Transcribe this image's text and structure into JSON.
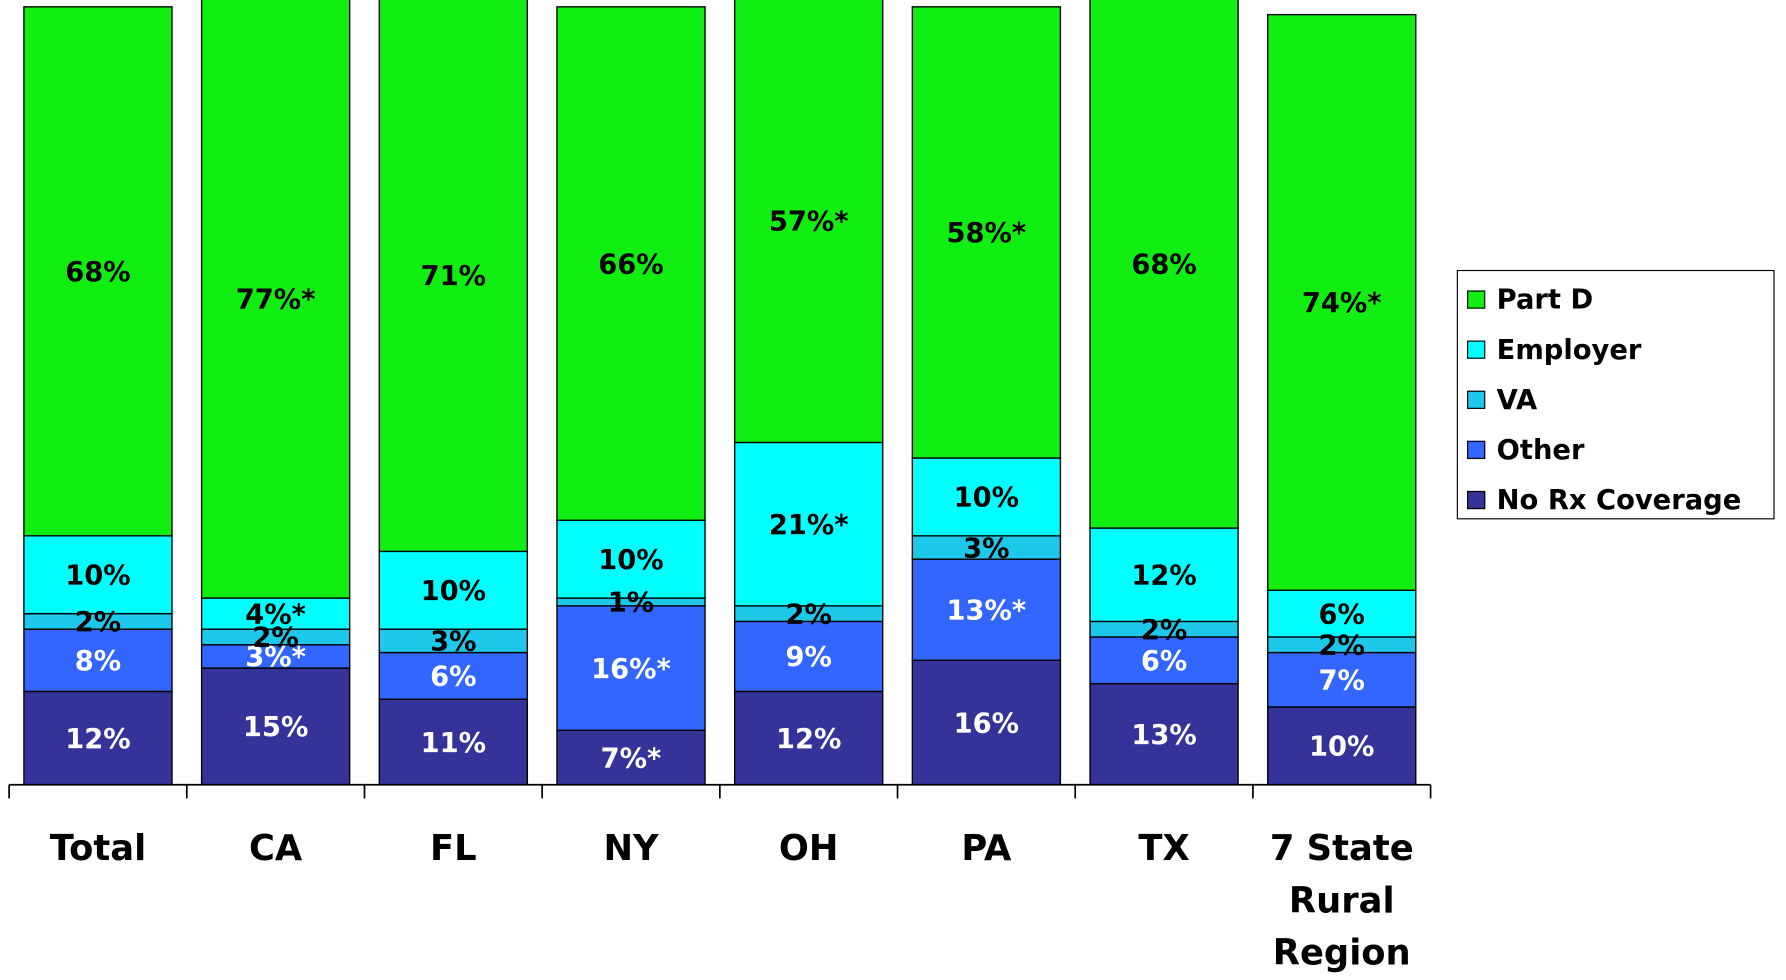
{
  "chart_data": {
    "type": "stacked_bar",
    "categories": [
      "Total",
      "CA",
      "FL",
      "NY",
      "OH",
      "PA",
      "TX",
      "7 State\nRural\nRegion"
    ],
    "ylim": [
      0,
      100
    ],
    "series": [
      {
        "name": "No Rx Coverage",
        "color": "#333399",
        "label_color": "#ffffff",
        "values": [
          12,
          15,
          11,
          7,
          12,
          16,
          13,
          10
        ],
        "value_labels": [
          "12%",
          "15%",
          "11%",
          "7%*",
          "12%",
          "16%",
          "13%",
          "10%"
        ]
      },
      {
        "name": "Other",
        "color": "#3366ff",
        "label_color": "#ffffff",
        "values": [
          8,
          3,
          6,
          16,
          9,
          13,
          6,
          7
        ],
        "value_labels": [
          "8%",
          "3%*",
          "6%",
          "16%*",
          "9%",
          "13%*",
          "6%",
          "7%"
        ]
      },
      {
        "name": "VA",
        "color": "#1ec8ea",
        "label_color": "#000000",
        "values": [
          2,
          2,
          3,
          1,
          2,
          3,
          2,
          2
        ],
        "value_labels": [
          "2%",
          "2%",
          "3%",
          "1%",
          "2%",
          "3%",
          "2%",
          "2%"
        ]
      },
      {
        "name": "Employer",
        "color": "#00ffff",
        "label_color": "#000000",
        "values": [
          10,
          4,
          10,
          10,
          21,
          10,
          12,
          6
        ],
        "value_labels": [
          "10%",
          "4%*",
          "10%",
          "10%",
          "21%*",
          "10%",
          "12%",
          "6%"
        ]
      },
      {
        "name": "Part D",
        "color": "#11ee11",
        "label_color": "#000000",
        "values": [
          68,
          77,
          71,
          66,
          57,
          58,
          68,
          74
        ],
        "value_labels": [
          "68%",
          "77%*",
          "71%",
          "66%",
          "57%*",
          "58%*",
          "68%",
          "74%*"
        ]
      }
    ]
  }
}
